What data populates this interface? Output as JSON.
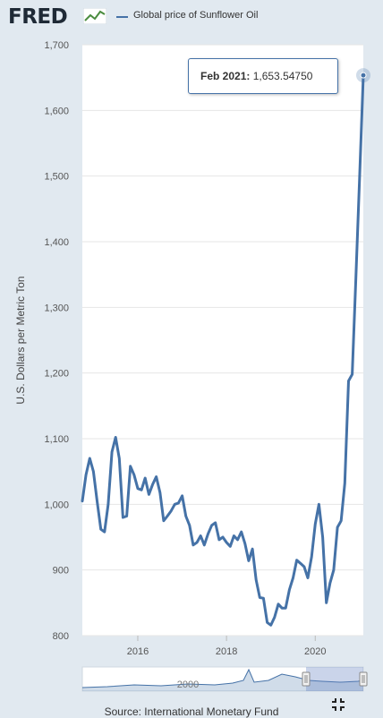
{
  "header": {
    "logo_text": "FRED",
    "legend_label": "Global price of Sunflower Oil",
    "series_color": "#4572a7"
  },
  "tooltip": {
    "date": "Feb 2021:",
    "value": "1,653.54750"
  },
  "navigator": {
    "label": "2000"
  },
  "source": "Source: International Monetary Fund",
  "chart_data": {
    "type": "line",
    "ylabel": "U.S. Dollars per Metric Ton",
    "ylim": [
      800,
      1700
    ],
    "yticks": [
      800,
      900,
      1000,
      1100,
      1200,
      1300,
      1400,
      1500,
      1600,
      1700
    ],
    "ytick_labels": [
      "800",
      "900",
      "1,000",
      "1,100",
      "1,200",
      "1,300",
      "1,400",
      "1,500",
      "1,600",
      "1,700"
    ],
    "xlim": [
      "2014-10",
      "2021-02"
    ],
    "xticks": [
      "2016-01",
      "2018-01",
      "2020-01"
    ],
    "xtick_labels": [
      "2016",
      "2018",
      "2020"
    ],
    "grid": true,
    "series": [
      {
        "name": "Global price of Sunflower Oil",
        "x": [
          "2014-10",
          "2014-11",
          "2014-12",
          "2015-01",
          "2015-02",
          "2015-03",
          "2015-04",
          "2015-05",
          "2015-06",
          "2015-07",
          "2015-08",
          "2015-09",
          "2015-10",
          "2015-11",
          "2015-12",
          "2016-01",
          "2016-02",
          "2016-03",
          "2016-04",
          "2016-05",
          "2016-06",
          "2016-07",
          "2016-08",
          "2016-09",
          "2016-10",
          "2016-11",
          "2016-12",
          "2017-01",
          "2017-02",
          "2017-03",
          "2017-04",
          "2017-05",
          "2017-06",
          "2017-07",
          "2017-08",
          "2017-09",
          "2017-10",
          "2017-11",
          "2017-12",
          "2018-01",
          "2018-02",
          "2018-03",
          "2018-04",
          "2018-05",
          "2018-06",
          "2018-07",
          "2018-08",
          "2018-09",
          "2018-10",
          "2018-11",
          "2018-12",
          "2019-01",
          "2019-02",
          "2019-03",
          "2019-04",
          "2019-05",
          "2019-06",
          "2019-07",
          "2019-08",
          "2019-09",
          "2019-10",
          "2019-11",
          "2019-12",
          "2020-01",
          "2020-02",
          "2020-03",
          "2020-04",
          "2020-05",
          "2020-06",
          "2020-07",
          "2020-08",
          "2020-09",
          "2020-10",
          "2020-11",
          "2020-12",
          "2021-01",
          "2021-02"
        ],
        "values": [
          1005,
          1045,
          1070,
          1050,
          1005,
          962,
          958,
          1000,
          1080,
          1102,
          1070,
          980,
          982,
          1058,
          1045,
          1024,
          1022,
          1040,
          1015,
          1030,
          1042,
          1018,
          975,
          982,
          990,
          1000,
          1002,
          1013,
          982,
          968,
          938,
          942,
          952,
          938,
          955,
          968,
          972,
          946,
          950,
          942,
          936,
          952,
          946,
          958,
          940,
          914,
          932,
          885,
          858,
          857,
          820,
          816,
          828,
          848,
          842,
          842,
          870,
          888,
          915,
          910,
          905,
          888,
          920,
          970,
          1000,
          950,
          850,
          880,
          900,
          965,
          975,
          1032,
          1188,
          1198,
          1345,
          1500,
          1653.5475
        ]
      }
    ]
  }
}
